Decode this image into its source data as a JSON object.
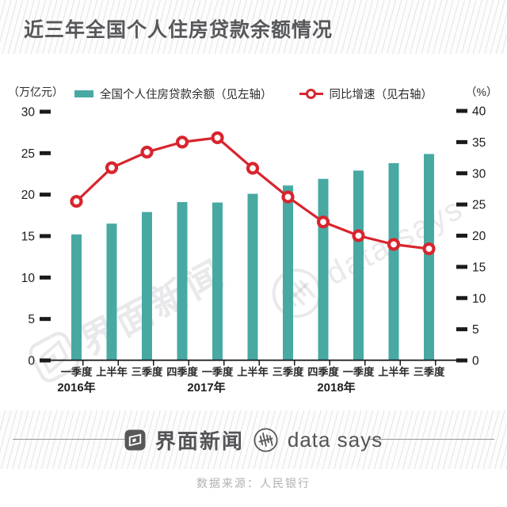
{
  "title": "近三年全国个人住房贷款余额情况",
  "legend": {
    "items": [
      {
        "label": "全国个人住房贷款余额（见左轴）",
        "marker": "bar-swatch",
        "color": "#48a9a3"
      },
      {
        "label": "同比增速（见右轴）",
        "marker": "ring-on-line",
        "color": "#d8252e"
      }
    ]
  },
  "chart_data": {
    "type": "bar",
    "categories": [
      "一季度",
      "上半年",
      "三季度",
      "四季度",
      "一季度",
      "上半年",
      "三季度",
      "四季度",
      "一季度",
      "上半年",
      "三季度"
    ],
    "year_groups": [
      {
        "label": "2016年",
        "index": 0
      },
      {
        "label": "2017年",
        "index": 4
      },
      {
        "label": "2018年",
        "index": 8
      }
    ],
    "series": [
      {
        "name": "全国个人住房贷款余额（见左轴）",
        "type": "bar",
        "axis": "left",
        "color": "#48a9a3",
        "values": [
          15.2,
          16.5,
          17.9,
          19.1,
          19.05,
          20.1,
          21.1,
          21.9,
          22.9,
          23.8,
          24.9
        ]
      },
      {
        "name": "同比增速（见右轴）",
        "type": "line",
        "axis": "right",
        "color": "#d8252e",
        "values": [
          25.5,
          30.9,
          33.4,
          35.0,
          35.7,
          30.8,
          26.2,
          22.2,
          20.0,
          18.6,
          17.9
        ]
      }
    ],
    "left_axis": {
      "unit": "（万亿元）",
      "min": 0,
      "max": 30,
      "step": 5
    },
    "right_axis": {
      "unit": "（%）",
      "min": 0,
      "max": 40,
      "step": 5
    },
    "grid": false,
    "legend_position": "top"
  },
  "watermarks": {
    "brand": "界面新闻",
    "data_says": "data says"
  },
  "footer": {
    "brand": "界面新闻",
    "tagline": "data says",
    "source": "数据来源：人民银行"
  },
  "colors": {
    "bar": "#48a9a3",
    "line": "#d8252e",
    "axis": "#1b1b1d",
    "title": "#57585a"
  }
}
